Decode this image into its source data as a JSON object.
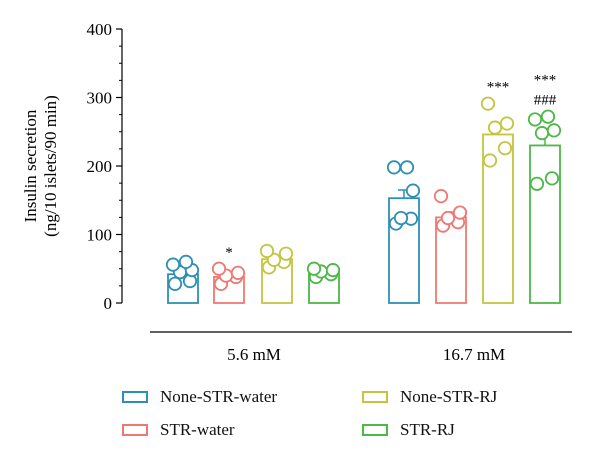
{
  "chart_data": {
    "type": "bar",
    "ylabel_line1": "Insulin secretion",
    "ylabel_line2": "(ng/10 islets/90 min)",
    "ylim": [
      0,
      400
    ],
    "yticks": [
      0,
      100,
      200,
      300,
      400
    ],
    "groups": [
      "5.6 mM",
      "16.7 mM"
    ],
    "series": [
      {
        "name": "None-STR-water",
        "color": "#2e8fb5",
        "values": [
          42,
          153
        ],
        "error": [
          4,
          12
        ],
        "points": [
          [
            28,
            32,
            45,
            48,
            56,
            60
          ],
          [
            116,
            123,
            124,
            164,
            198,
            198
          ]
        ],
        "sig": [
          "",
          ""
        ]
      },
      {
        "name": "STR-water",
        "color": "#f07873",
        "values": [
          38,
          125
        ],
        "error": [
          4,
          8
        ],
        "points": [
          [
            28,
            38,
            40,
            44,
            50
          ],
          [
            113,
            118,
            124,
            132,
            156
          ]
        ],
        "sig": [
          "*",
          ""
        ]
      },
      {
        "name": "None-STR-RJ",
        "color": "#c5c43e",
        "values": [
          64,
          246
        ],
        "error": [
          4,
          12
        ],
        "points": [
          [
            52,
            60,
            63,
            72,
            76
          ],
          [
            208,
            226,
            256,
            262,
            291
          ]
        ],
        "sig": [
          "",
          "***"
        ]
      },
      {
        "name": "STR-RJ",
        "color": "#4cb848",
        "values": [
          45,
          230
        ],
        "error": [
          3,
          16
        ],
        "points": [
          [
            38,
            42,
            46,
            48,
            50
          ],
          [
            174,
            182,
            248,
            252,
            268,
            272
          ]
        ],
        "sig": [
          "",
          "***\n###"
        ]
      }
    ]
  }
}
